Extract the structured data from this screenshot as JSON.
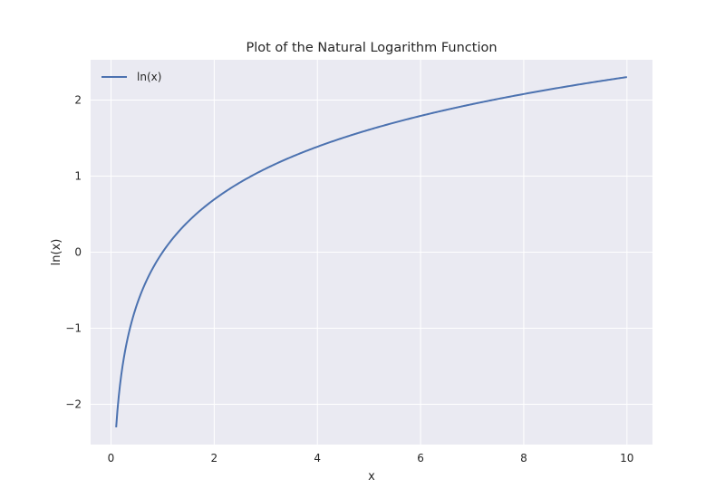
{
  "chart_data": {
    "type": "line",
    "title": "Plot of the Natural Logarithm Function",
    "xlabel": "x",
    "ylabel": "ln(x)",
    "xlim": [
      -0.395,
      10.495
    ],
    "ylim": [
      -2.53,
      2.53
    ],
    "xticks": [
      0,
      2,
      4,
      6,
      8,
      10
    ],
    "xtick_labels": [
      "0",
      "2",
      "4",
      "6",
      "8",
      "10"
    ],
    "yticks": [
      -2,
      -1,
      0,
      1,
      2
    ],
    "ytick_labels": [
      "−2",
      "−1",
      "0",
      "1",
      "2"
    ],
    "grid": true,
    "legend_position": "top-left",
    "series": [
      {
        "name": "ln(x)",
        "color": "#4c72b0",
        "function": "ln",
        "x_start": 0.1,
        "x_end": 10,
        "num_points": 400
      }
    ]
  },
  "colors": {
    "plot_background": "#eaeaf2",
    "grid": "#ffffff",
    "text": "#262626"
  }
}
